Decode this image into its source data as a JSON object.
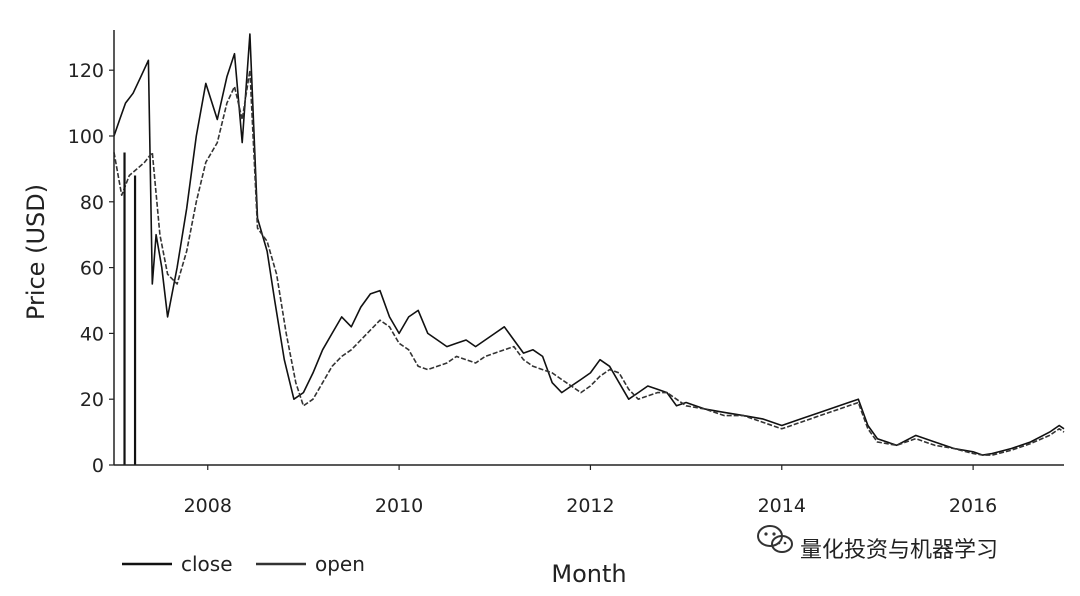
{
  "chart_data": {
    "type": "line",
    "xlabel": "Month",
    "ylabel": "Price (USD)",
    "xlim": [
      2007.02,
      2016.95
    ],
    "ylim": [
      0,
      131
    ],
    "x_ticks": [
      2008,
      2010,
      2012,
      2014,
      2016
    ],
    "y_ticks": [
      0,
      20,
      40,
      60,
      80,
      100,
      120
    ],
    "grid": false,
    "legend_position": "bottom-left",
    "series": [
      {
        "name": "close",
        "color": "#111111",
        "dash": "solid",
        "x": [
          2007.02,
          2007.08,
          2007.14,
          2007.22,
          2007.3,
          2007.38,
          2007.42,
          2007.46,
          2007.52,
          2007.58,
          2007.68,
          2007.78,
          2007.88,
          2007.98,
          2008.1,
          2008.2,
          2008.28,
          2008.36,
          2008.44,
          2008.52,
          2008.62,
          2008.7,
          2008.8,
          2008.9,
          2009.0,
          2009.1,
          2009.2,
          2009.3,
          2009.4,
          2009.5,
          2009.6,
          2009.7,
          2009.8,
          2009.9,
          2010.0,
          2010.1,
          2010.2,
          2010.3,
          2010.4,
          2010.5,
          2010.6,
          2010.7,
          2010.8,
          2010.9,
          2011.0,
          2011.1,
          2011.2,
          2011.3,
          2011.4,
          2011.5,
          2011.6,
          2011.7,
          2011.8,
          2011.9,
          2012.0,
          2012.1,
          2012.2,
          2012.3,
          2012.4,
          2012.5,
          2012.6,
          2012.7,
          2012.8,
          2012.9,
          2013.0,
          2013.2,
          2013.4,
          2013.6,
          2013.8,
          2014.0,
          2014.2,
          2014.4,
          2014.6,
          2014.7,
          2014.8,
          2014.9,
          2015.0,
          2015.2,
          2015.4,
          2015.6,
          2015.8,
          2016.0,
          2016.1,
          2016.2,
          2016.4,
          2016.6,
          2016.8,
          2016.9,
          2016.95
        ],
        "y": [
          100,
          105,
          110,
          113,
          118,
          123,
          55,
          70,
          60,
          45,
          60,
          78,
          100,
          116,
          105,
          118,
          125,
          98,
          131,
          75,
          65,
          50,
          32,
          20,
          22,
          28,
          35,
          40,
          45,
          42,
          48,
          52,
          53,
          45,
          40,
          45,
          47,
          40,
          38,
          36,
          37,
          38,
          36,
          38,
          40,
          42,
          38,
          34,
          35,
          33,
          25,
          22,
          24,
          26,
          28,
          32,
          30,
          25,
          20,
          22,
          24,
          23,
          22,
          18,
          19,
          17,
          16,
          15,
          14,
          12,
          14,
          16,
          18,
          19,
          20,
          12,
          8,
          6,
          9,
          7,
          5,
          4,
          3,
          3.5,
          5,
          7,
          10,
          12,
          11
        ]
      },
      {
        "name": "open",
        "color": "#333333",
        "dash": "dashed",
        "x": [
          2007.02,
          2007.1,
          2007.18,
          2007.26,
          2007.34,
          2007.42,
          2007.5,
          2007.58,
          2007.68,
          2007.78,
          2007.88,
          2007.98,
          2008.1,
          2008.2,
          2008.28,
          2008.36,
          2008.44,
          2008.52,
          2008.62,
          2008.72,
          2008.82,
          2008.92,
          2009.0,
          2009.1,
          2009.2,
          2009.3,
          2009.4,
          2009.5,
          2009.6,
          2009.7,
          2009.8,
          2009.9,
          2010.0,
          2010.1,
          2010.2,
          2010.3,
          2010.4,
          2010.5,
          2010.6,
          2010.7,
          2010.8,
          2010.9,
          2011.0,
          2011.1,
          2011.2,
          2011.3,
          2011.4,
          2011.5,
          2011.6,
          2011.7,
          2011.8,
          2011.9,
          2012.0,
          2012.1,
          2012.2,
          2012.3,
          2012.4,
          2012.5,
          2012.6,
          2012.7,
          2012.8,
          2012.9,
          2013.0,
          2013.2,
          2013.4,
          2013.6,
          2013.8,
          2014.0,
          2014.2,
          2014.4,
          2014.6,
          2014.7,
          2014.8,
          2014.9,
          2015.0,
          2015.2,
          2015.4,
          2015.6,
          2015.8,
          2016.0,
          2016.1,
          2016.2,
          2016.4,
          2016.6,
          2016.8,
          2016.9,
          2016.95
        ],
        "y": [
          95,
          82,
          88,
          90,
          92,
          95,
          70,
          58,
          55,
          65,
          80,
          92,
          98,
          110,
          115,
          105,
          120,
          72,
          68,
          58,
          40,
          25,
          18,
          20,
          25,
          30,
          33,
          35,
          38,
          41,
          44,
          42,
          37,
          35,
          30,
          29,
          30,
          31,
          33,
          32,
          31,
          33,
          34,
          35,
          36,
          32,
          30,
          29,
          28,
          26,
          24,
          22,
          24,
          27,
          29,
          28,
          23,
          20,
          21,
          22,
          22,
          20,
          18,
          17,
          15,
          15,
          13,
          11,
          13,
          15,
          17,
          18,
          19,
          11,
          7,
          6,
          8,
          6,
          5,
          3.5,
          3,
          3,
          4.5,
          6.5,
          9,
          11,
          10
        ]
      }
    ],
    "vertical_spikes": [
      {
        "x": 2007.13,
        "y0": 0,
        "y1": 95
      },
      {
        "x": 2007.24,
        "y0": 0,
        "y1": 88
      }
    ]
  },
  "watermark": {
    "text": "量化投资与机器学习",
    "icon": "wechat-icon"
  }
}
